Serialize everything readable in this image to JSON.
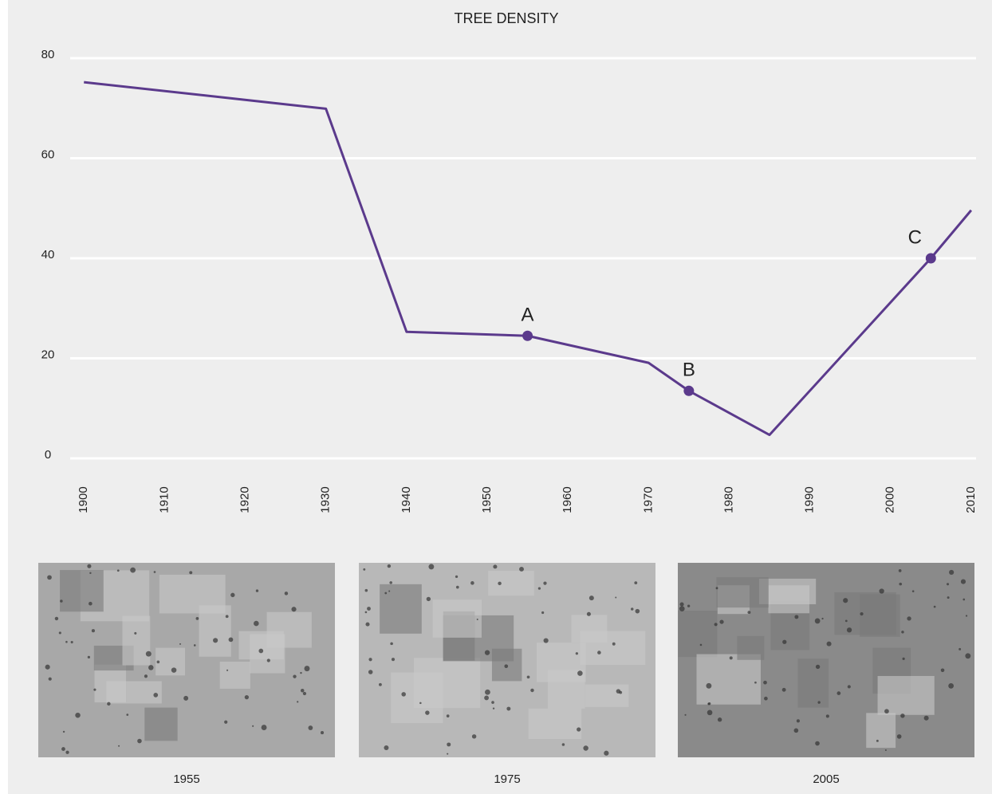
{
  "chart_data": {
    "type": "line",
    "title": "TREE DENSITY",
    "x": [
      1900,
      1930,
      1940,
      1955,
      1970,
      1975,
      1985,
      2005,
      2010
    ],
    "series": [
      {
        "color": "#5b3a8c",
        "values": [
          75.2,
          69.9,
          25.3,
          24.5,
          19.1,
          13.5,
          4.7,
          40,
          49.6
        ]
      }
    ],
    "annotations": [
      {
        "label": "A",
        "x": 1955,
        "y": 24.5
      },
      {
        "label": "B",
        "x": 1975,
        "y": 13.5
      },
      {
        "label": "C",
        "x": 2005,
        "y": 40
      }
    ],
    "xlim": [
      1898,
      2011
    ],
    "xticks": [
      1900,
      1910,
      1920,
      1930,
      1940,
      1950,
      1960,
      1970,
      1980,
      1990,
      2000,
      2010
    ],
    "ylim": [
      0,
      80
    ],
    "yticks": [
      0,
      20,
      40,
      60,
      80
    ],
    "grid": true
  },
  "photos": [
    {
      "caption": "1955"
    },
    {
      "caption": "1975"
    },
    {
      "caption": "2005"
    }
  ]
}
